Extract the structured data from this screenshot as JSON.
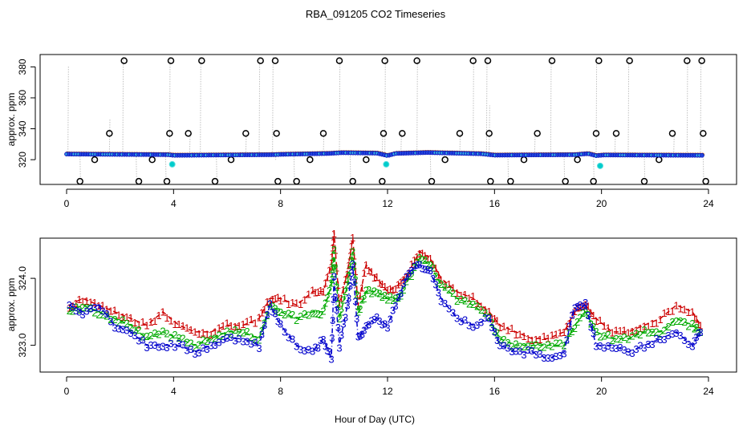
{
  "chart_data": [
    {
      "type": "line",
      "title": "RBA_091205  CO2 Timeseries",
      "xlabel": "",
      "ylabel": "approx. ppm",
      "xlim": [
        0,
        24
      ],
      "ylim": [
        304,
        388
      ],
      "xticks": [
        "0",
        "4",
        "8",
        "12",
        "16",
        "20",
        "24"
      ],
      "yticks": [
        "320",
        "340",
        "360",
        "380"
      ],
      "ytick_values": [
        320,
        340,
        360,
        380
      ],
      "grid": false,
      "series": [
        {
          "color": "#a0a0a0",
          "style": "dotted-spikes",
          "x": [
            0.05,
            0.5,
            1.0,
            1.6,
            2.1,
            2.6,
            3.1,
            3.7,
            3.85,
            4.6,
            5.0,
            5.6,
            6.2,
            6.7,
            7.2,
            7.7,
            7.8,
            8.5,
            9.0,
            9.6,
            10.2,
            10.6,
            11.2,
            11.8,
            11.9,
            12.5,
            13.1,
            13.6,
            14.1,
            14.7,
            15.2,
            15.7,
            15.8,
            16.5,
            17.0,
            17.5,
            18.1,
            18.6,
            19.1,
            19.7,
            19.8,
            20.5,
            21.0,
            21.6,
            22.2,
            22.7,
            23.2,
            23.7,
            23.8
          ],
          "values": [
            381,
            306,
            320,
            346,
            387,
            306,
            320,
            306,
            387,
            337,
            387,
            306,
            320,
            337,
            387,
            387,
            320,
            306,
            320,
            337,
            387,
            306,
            320,
            337,
            387,
            337,
            387,
            306,
            320,
            337,
            387,
            387,
            355,
            306,
            320,
            337,
            387,
            306,
            320,
            306,
            387,
            337,
            387,
            306,
            320,
            337,
            387,
            387,
            306
          ]
        },
        {
          "marker": "open-circle",
          "color": "#000000",
          "x": [
            0.5,
            1.05,
            1.6,
            2.15,
            2.7,
            3.2,
            3.75,
            3.85,
            3.9,
            4.55,
            5.05,
            5.55,
            6.15,
            6.7,
            7.25,
            7.8,
            7.85,
            7.9,
            8.6,
            9.1,
            9.6,
            10.2,
            10.7,
            11.2,
            11.8,
            11.85,
            11.9,
            12.55,
            13.1,
            13.65,
            14.15,
            14.7,
            15.2,
            15.75,
            15.8,
            15.85,
            16.6,
            17.1,
            17.6,
            18.15,
            18.65,
            19.1,
            19.7,
            19.8,
            19.9,
            20.55,
            21.05,
            21.6,
            22.15,
            22.65,
            23.2,
            23.75,
            23.8,
            23.9
          ],
          "values": [
            306,
            320,
            337,
            384,
            306,
            320,
            306,
            337,
            384,
            337,
            384,
            306,
            320,
            337,
            384,
            384,
            337,
            306,
            306,
            320,
            337,
            384,
            306,
            320,
            306,
            337,
            384,
            337,
            384,
            306,
            320,
            337,
            384,
            384,
            337,
            306,
            306,
            320,
            337,
            384,
            306,
            320,
            306,
            337,
            384,
            337,
            384,
            306,
            320,
            337,
            384,
            384,
            337,
            306
          ]
        },
        {
          "name": "",
          "marker": "circle",
          "color": "#0000cc",
          "baseline": [
            [
              0,
              323.6
            ],
            [
              3.8,
              323.2
            ],
            [
              4.0,
              322.8
            ],
            [
              7.7,
              323.2
            ],
            [
              8.0,
              323.4
            ],
            [
              9.8,
              324.0
            ],
            [
              10.3,
              324.5
            ],
            [
              11.6,
              324.2
            ],
            [
              12.0,
              322.6
            ],
            [
              12.3,
              324.0
            ],
            [
              13.5,
              324.6
            ],
            [
              15.5,
              323.8
            ],
            [
              16.0,
              322.9
            ],
            [
              19.0,
              323.2
            ],
            [
              19.5,
              323.9
            ],
            [
              19.8,
              322.6
            ],
            [
              20.1,
              323.0
            ],
            [
              23.8,
              322.8
            ]
          ]
        },
        {
          "marker": "circle",
          "color": "#00cccc",
          "x": [
            3.95,
            11.95,
            19.95
          ],
          "values": [
            317,
            317,
            316
          ]
        }
      ]
    },
    {
      "type": "line",
      "title": "",
      "xlabel": "Hour of Day (UTC)",
      "ylabel": "approx. ppm",
      "xlim": [
        0,
        24
      ],
      "ylim": [
        322.6,
        324.6
      ],
      "xticks": [
        "0",
        "4",
        "8",
        "12",
        "16",
        "20",
        "24"
      ],
      "yticks": [
        "323.0",
        "324.0"
      ],
      "ytick_values": [
        323.0,
        324.0
      ],
      "grid": false,
      "series": [
        {
          "name": "1",
          "color": "#cc0000",
          "x": [
            0.1,
            0.6,
            1.2,
            1.8,
            2.4,
            3.0,
            3.6,
            4.2,
            4.8,
            5.4,
            6.0,
            6.6,
            7.2,
            7.6,
            8.0,
            8.6,
            9.2,
            9.6,
            9.9,
            10.0,
            10.2,
            10.5,
            10.7,
            10.9,
            11.2,
            11.6,
            12.0,
            12.4,
            12.8,
            13.2,
            13.6,
            14.0,
            14.6,
            15.2,
            15.8,
            16.2,
            16.8,
            17.4,
            18.0,
            18.6,
            19.0,
            19.4,
            19.8,
            20.4,
            21.0,
            21.6,
            22.2,
            22.8,
            23.4,
            23.7
          ],
          "values": [
            323.6,
            323.7,
            323.6,
            323.5,
            323.4,
            323.3,
            323.5,
            323.3,
            323.2,
            323.2,
            323.3,
            323.3,
            323.4,
            323.7,
            323.7,
            323.6,
            323.8,
            323.8,
            324.2,
            324.7,
            323.6,
            324.1,
            324.6,
            323.6,
            324.2,
            324.0,
            323.8,
            323.9,
            324.1,
            324.4,
            324.3,
            324.0,
            323.8,
            323.7,
            323.5,
            323.3,
            323.2,
            323.1,
            323.1,
            323.2,
            323.5,
            323.6,
            323.4,
            323.2,
            323.2,
            323.3,
            323.4,
            323.6,
            323.5,
            323.3
          ]
        },
        {
          "name": "2",
          "color": "#00aa00",
          "x": [
            0.1,
            0.6,
            1.2,
            1.8,
            2.4,
            3.0,
            3.6,
            4.2,
            4.8,
            5.4,
            6.0,
            6.6,
            7.2,
            7.6,
            8.0,
            8.6,
            9.2,
            9.6,
            9.9,
            10.0,
            10.2,
            10.5,
            10.7,
            10.9,
            11.2,
            11.6,
            12.0,
            12.4,
            12.8,
            13.2,
            13.6,
            14.0,
            14.6,
            15.2,
            15.8,
            16.2,
            16.8,
            17.4,
            18.0,
            18.6,
            19.0,
            19.4,
            19.8,
            20.4,
            21.0,
            21.6,
            22.2,
            22.8,
            23.4,
            23.7
          ],
          "values": [
            323.5,
            323.6,
            323.5,
            323.4,
            323.3,
            323.1,
            323.2,
            323.1,
            323.0,
            323.1,
            323.2,
            323.2,
            323.1,
            323.6,
            323.5,
            323.4,
            323.5,
            323.5,
            323.9,
            324.4,
            323.4,
            323.9,
            324.4,
            323.5,
            323.8,
            323.8,
            323.7,
            323.7,
            324.0,
            324.3,
            324.2,
            323.9,
            323.7,
            323.6,
            323.4,
            323.1,
            323.0,
            323.0,
            323.0,
            323.0,
            323.3,
            323.5,
            323.2,
            323.1,
            323.1,
            323.2,
            323.2,
            323.4,
            323.3,
            323.2
          ]
        },
        {
          "name": "3",
          "color": "#0000cc",
          "x": [
            0.1,
            0.6,
            1.2,
            1.8,
            2.4,
            3.0,
            3.6,
            4.2,
            4.8,
            5.4,
            6.0,
            6.6,
            7.2,
            7.6,
            8.0,
            8.6,
            9.2,
            9.6,
            9.9,
            10.0,
            10.2,
            10.5,
            10.7,
            10.9,
            11.2,
            11.6,
            12.0,
            12.4,
            12.8,
            13.2,
            13.6,
            14.0,
            14.6,
            15.2,
            15.8,
            16.2,
            16.8,
            17.4,
            18.0,
            18.6,
            19.0,
            19.4,
            19.8,
            20.4,
            21.0,
            21.6,
            22.2,
            22.8,
            23.4,
            23.7
          ],
          "values": [
            323.6,
            323.5,
            323.6,
            323.3,
            323.2,
            323.0,
            323.0,
            323.0,
            322.9,
            323.0,
            323.1,
            323.1,
            323.0,
            323.6,
            323.3,
            323.0,
            322.9,
            323.1,
            322.8,
            324.0,
            323.0,
            323.6,
            324.2,
            323.1,
            323.3,
            323.4,
            323.3,
            323.7,
            324.1,
            324.2,
            324.1,
            323.7,
            323.4,
            323.3,
            323.4,
            323.0,
            322.9,
            322.9,
            322.8,
            322.9,
            323.6,
            323.6,
            323.0,
            323.0,
            322.9,
            323.0,
            323.1,
            323.2,
            323.0,
            323.2
          ]
        }
      ]
    }
  ]
}
